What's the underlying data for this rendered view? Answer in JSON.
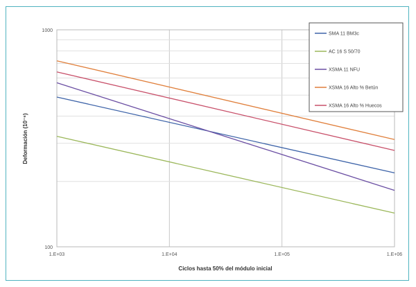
{
  "chart_data": {
    "type": "line",
    "x_scale": "log",
    "y_scale": "log",
    "xlim": [
      1000,
      1000000
    ],
    "ylim": [
      100,
      1000
    ],
    "x_ticks": [
      "1.E+03",
      "1.E+04",
      "1.E+05",
      "1.E+06"
    ],
    "y_ticks": [
      "100",
      "1000"
    ],
    "xlabel": "Ciclos hasta 50% del módulo inicial",
    "ylabel": "Deformación (10⁻⁶)",
    "grid": true,
    "legend_position": "top-right",
    "series": [
      {
        "name": "SMA 11 BM3c",
        "color": "#3d63a8",
        "x": [
          1000,
          1000000
        ],
        "y": [
          490,
          219
        ]
      },
      {
        "name": "AC 16 S 50/70",
        "color": "#9bb75a",
        "x": [
          1000,
          1000000
        ],
        "y": [
          323,
          143
        ]
      },
      {
        "name": "XSMA 11 NFU",
        "color": "#6b4fa3",
        "x": [
          1000,
          1000000
        ],
        "y": [
          570,
          182
        ]
      },
      {
        "name": "XSMA 16 Alto % Betún",
        "color": "#e07f3b",
        "x": [
          1000,
          1000000
        ],
        "y": [
          720,
          312
        ]
      },
      {
        "name": "XSMA 16 Alto % Huecos",
        "color": "#c8506a",
        "x": [
          1000,
          1000000
        ],
        "y": [
          640,
          278
        ]
      }
    ]
  }
}
